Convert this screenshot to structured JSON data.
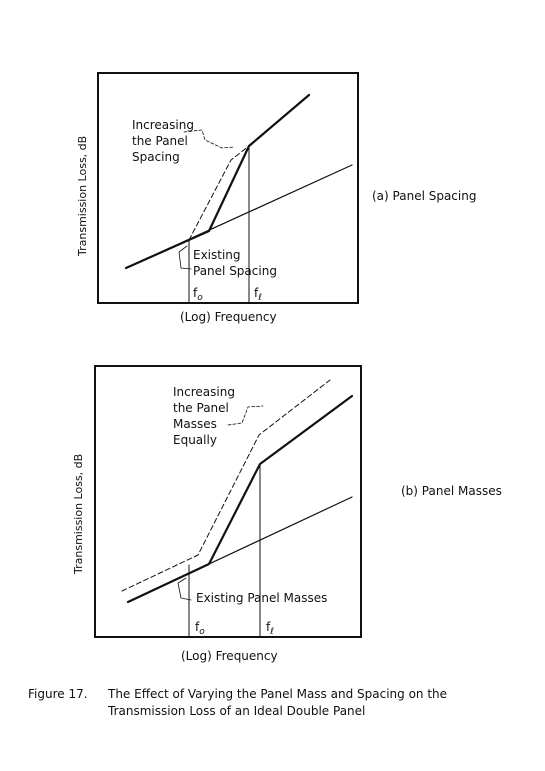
{
  "figure": {
    "caption_label": "Figure 17.",
    "caption_line1": "The Effect of Varying the Panel Mass and Spacing on the",
    "caption_line2": "Transmission Loss of an Ideal Double Panel"
  },
  "panel_a": {
    "title": "(a) Panel Spacing",
    "y_axis_label": "Transmission Loss, dB",
    "x_axis_label": "(Log) Frequency",
    "freq_low": "f",
    "freq_low_sub": "o",
    "freq_high": "f",
    "freq_high_sub": "ℓ",
    "annotation_increasing": [
      "Increasing",
      "the Panel",
      "Spacing"
    ],
    "annotation_existing": [
      "Existing",
      "Panel Spacing"
    ]
  },
  "panel_b": {
    "title": "(b) Panel Masses",
    "y_axis_label": "Transmission Loss, dB",
    "x_axis_label": "(Log) Frequency",
    "freq_low": "f",
    "freq_low_sub": "o",
    "freq_high": "f",
    "freq_high_sub": "ℓ",
    "annotation_increasing": [
      "Increasing",
      "the Panel",
      "Masses",
      "Equally"
    ],
    "annotation_existing": [
      "Existing Panel Masses"
    ]
  },
  "colors": {
    "ink": "#111111",
    "paper": "#ffffff"
  }
}
